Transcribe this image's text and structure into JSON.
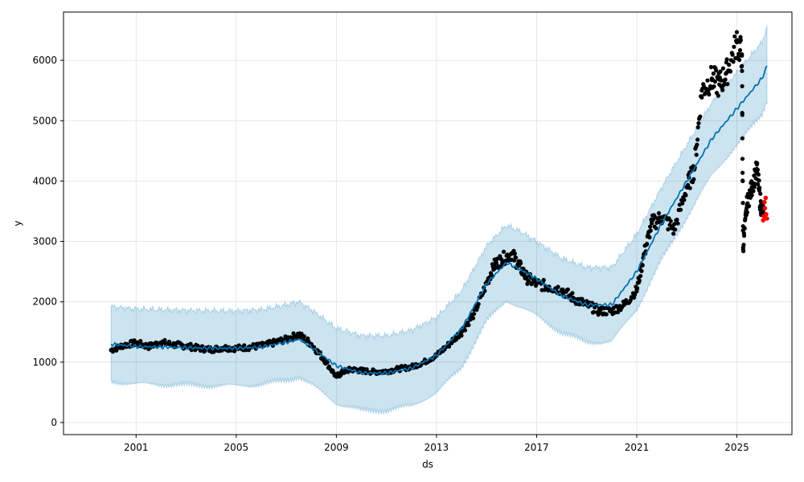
{
  "chart_data": {
    "type": "line",
    "xlabel": "ds",
    "ylabel": "y",
    "xlim": [
      1998.1,
      2027.2
    ],
    "ylim": [
      -200,
      6800
    ],
    "grid": true,
    "x_ticks": [
      {
        "value": 2001,
        "label": "2001"
      },
      {
        "value": 2005,
        "label": "2005"
      },
      {
        "value": 2009,
        "label": "2009"
      },
      {
        "value": 2013,
        "label": "2013"
      },
      {
        "value": 2017,
        "label": "2017"
      },
      {
        "value": 2021,
        "label": "2021"
      },
      {
        "value": 2025,
        "label": "2025"
      }
    ],
    "y_ticks": [
      {
        "value": 0,
        "label": "0"
      },
      {
        "value": 1000,
        "label": "1000"
      },
      {
        "value": 2000,
        "label": "2000"
      },
      {
        "value": 3000,
        "label": "3000"
      },
      {
        "value": 4000,
        "label": "4000"
      },
      {
        "value": 5000,
        "label": "5000"
      },
      {
        "value": 6000,
        "label": "6000"
      }
    ],
    "colors": {
      "forecast_line": "#0072B2",
      "uncertainty_band": "#0072B2",
      "observed": "#000000",
      "highlighted": "#ff0000",
      "grid": "#e0e0e0"
    },
    "forecast": {
      "x": [
        2000.0,
        2001.0,
        2002.0,
        2003.0,
        2004.0,
        2005.0,
        2006.0,
        2007.0,
        2007.5,
        2008.0,
        2009.0,
        2010.0,
        2011.0,
        2012.0,
        2013.0,
        2014.0,
        2015.0,
        2015.8,
        2016.5,
        2017.0,
        2018.0,
        2019.0,
        2020.0,
        2021.0,
        2022.0,
        2023.0,
        2024.0,
        2025.0,
        2026.0,
        2026.2
      ],
      "yhat": [
        1300,
        1260,
        1250,
        1240,
        1230,
        1230,
        1250,
        1330,
        1380,
        1250,
        940,
        820,
        820,
        900,
        1110,
        1550,
        2300,
        2650,
        2500,
        2380,
        2100,
        1950,
        1950,
        2500,
        3300,
        4000,
        4700,
        5200,
        5700,
        5900
      ],
      "yhat_lower": [
        680,
        640,
        630,
        620,
        610,
        610,
        630,
        700,
        760,
        630,
        320,
        200,
        200,
        280,
        490,
        920,
        1680,
        2030,
        1880,
        1770,
        1490,
        1330,
        1340,
        1880,
        2700,
        3400,
        4100,
        4600,
        5100,
        5330
      ],
      "yhat_upper": [
        1920,
        1880,
        1870,
        1860,
        1850,
        1850,
        1870,
        1950,
        2000,
        1870,
        1560,
        1440,
        1440,
        1530,
        1740,
        2180,
        2930,
        3270,
        3130,
        3000,
        2720,
        2570,
        2570,
        3120,
        3900,
        4600,
        5300,
        5800,
        6300,
        6550
      ]
    },
    "observed": {
      "x": [
        2000.0,
        2000.5,
        2001.0,
        2001.5,
        2002.0,
        2002.5,
        2003.0,
        2003.5,
        2004.0,
        2004.5,
        2005.0,
        2005.5,
        2006.0,
        2006.5,
        2007.0,
        2007.5,
        2008.0,
        2008.5,
        2009.0,
        2009.3,
        2009.6,
        2010.0,
        2010.5,
        2011.0,
        2011.5,
        2012.0,
        2012.5,
        2013.0,
        2013.5,
        2014.0,
        2014.5,
        2015.0,
        2015.3,
        2015.6,
        2016.0,
        2016.3,
        2016.6,
        2017.0,
        2017.5,
        2018.0,
        2018.5,
        2019.0,
        2019.5,
        2020.0,
        2020.5,
        2021.0,
        2021.3,
        2021.6,
        2022.0,
        2022.5,
        2023.0,
        2023.3,
        2023.6,
        2024.0,
        2024.3,
        2024.6,
        2025.0,
        2025.2,
        2025.25,
        2025.4,
        2025.6,
        2025.8,
        2025.95,
        2026.05
      ],
      "y": [
        1200,
        1280,
        1320,
        1260,
        1330,
        1290,
        1270,
        1230,
        1210,
        1240,
        1230,
        1250,
        1270,
        1320,
        1380,
        1460,
        1300,
        1050,
        760,
        850,
        880,
        860,
        840,
        850,
        890,
        920,
        1000,
        1110,
        1300,
        1500,
        1800,
        2300,
        2600,
        2700,
        2800,
        2600,
        2400,
        2300,
        2250,
        2200,
        2050,
        1950,
        1850,
        1850,
        1950,
        2200,
        2800,
        3300,
        3400,
        3200,
        3900,
        4200,
        5500,
        5700,
        5600,
        5800,
        6300,
        6100,
        2900,
        3600,
        3900,
        4200,
        3600,
        3500
      ]
    },
    "highlighted": {
      "x": [
        2026.05,
        2026.08,
        2026.1,
        2026.12,
        2026.15,
        2026.17,
        2026.2
      ],
      "y": [
        3350,
        3420,
        3650,
        3550,
        3720,
        3450,
        3380
      ]
    }
  }
}
